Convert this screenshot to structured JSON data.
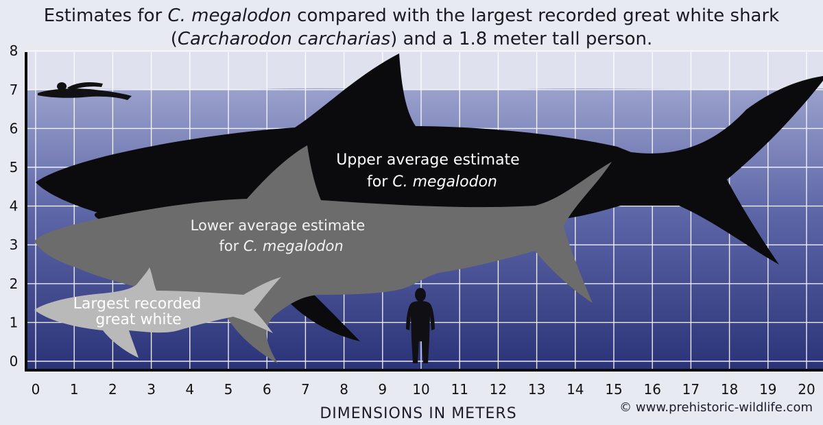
{
  "title": {
    "prefix": "Estimates for ",
    "species_italic": "C. megalodon",
    "middle": " compared with the largest recorded great white shark",
    "paren_open": "(",
    "binomial_italic": "Carcharodon carcharias",
    "suffix": ") and a 1.8 meter tall person."
  },
  "annotations": {
    "upper_line1": "Upper average estimate",
    "upper_line2_prefix": "for ",
    "upper_line2_italic": "C. megalodon",
    "lower_line1": "Lower average estimate",
    "lower_line2_prefix": "for ",
    "lower_line2_italic": "C. megalodon",
    "gw_line1": "Largest recorded",
    "gw_line2": "great white"
  },
  "axis": {
    "x_title": "DIMENSIONS IN METERS",
    "x_ticks": [
      "0",
      "1",
      "2",
      "3",
      "4",
      "5",
      "6",
      "7",
      "8",
      "9",
      "10",
      "11",
      "12",
      "13",
      "14",
      "15",
      "16",
      "17",
      "18",
      "19",
      "20"
    ],
    "y_ticks": [
      "0",
      "1",
      "2",
      "3",
      "4",
      "5",
      "6",
      "7",
      "8"
    ]
  },
  "credit": "© www.prehistoric-wildlife.com",
  "colors": {
    "sky": "#dfe2ee",
    "water_top": "#8f96c6",
    "water_bottom": "#2b3378",
    "grid": "#ffffff",
    "upper_shark": "#0b0b0e",
    "lower_shark": "#6c6c6c",
    "great_white": "#b9b9b9",
    "person": "#101014"
  }
}
